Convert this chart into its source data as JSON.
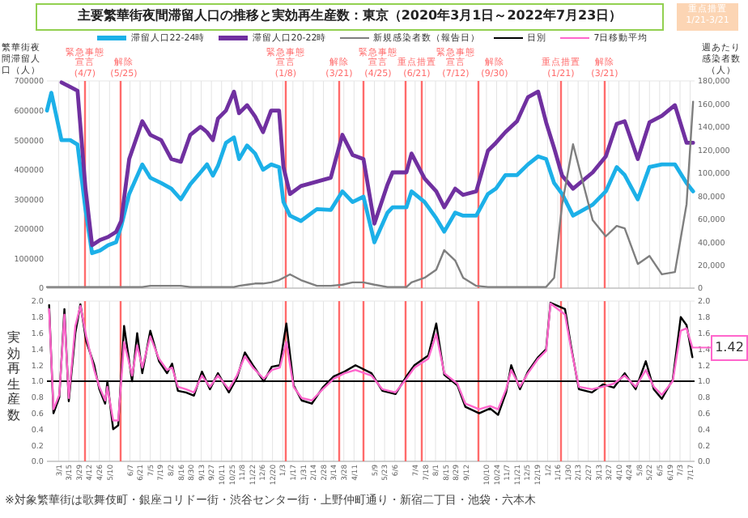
{
  "chart_data": [
    {
      "type": "line",
      "title": "主要繁華街夜間滞留人口の推移と実効再生産数：東京（2020年3月1日～2022年7月23日）",
      "ylabel": "繁華街夜間滞留人口（人）",
      "y2label": "週あたり感染者数（人）",
      "annotations": [
        "重点措置 1/21-3/21"
      ],
      "x": [
        "2020-02-14",
        "2020-02-20",
        "2020-03-05",
        "2020-03-17",
        "2020-03-27",
        "2020-04-07",
        "2020-04-16",
        "2020-04-27",
        "2020-05-08",
        "2020-05-19",
        "2020-05-26",
        "2020-06-06",
        "2020-06-24",
        "2020-07-05",
        "2020-07-20",
        "2020-08-03",
        "2020-08-16",
        "2020-08-29",
        "2020-09-12",
        "2020-09-21",
        "2020-09-29",
        "2020-10-06",
        "2020-10-17",
        "2020-10-28",
        "2020-11-04",
        "2020-11-15",
        "2020-11-26",
        "2020-12-07",
        "2020-12-18",
        "2020-12-29",
        "2021-01-04",
        "2021-01-13",
        "2021-01-28",
        "2021-02-19",
        "2021-03-10",
        "2021-03-26",
        "2021-04-09",
        "2021-04-24",
        "2021-05-09",
        "2021-05-27",
        "2021-06-03",
        "2021-06-22",
        "2021-06-29",
        "2021-07-17",
        "2021-08-02",
        "2021-08-13",
        "2021-08-28",
        "2021-09-08",
        "2021-09-26",
        "2021-10-12",
        "2021-10-23",
        "2021-11-05",
        "2021-11-21",
        "2021-12-06",
        "2021-12-20",
        "2021-12-31",
        "2022-01-11",
        "2022-01-22",
        "2022-02-06",
        "2022-03-05",
        "2022-03-23",
        "2022-04-07",
        "2022-04-18",
        "2022-05-06",
        "2022-05-22",
        "2022-06-08",
        "2022-06-26",
        "2022-07-12",
        "2022-07-21"
      ],
      "series": [
        {
          "name": "滞留人口22-24時",
          "color": "#1cb0e8",
          "values": [
            600000,
            660000,
            500000,
            500000,
            485000,
            264000,
            118000,
            127000,
            145000,
            155000,
            209000,
            318000,
            418000,
            373000,
            355000,
            336000,
            300000,
            351000,
            391000,
            418000,
            380000,
            413000,
            491000,
            509000,
            436000,
            482000,
            455000,
            400000,
            418000,
            409000,
            291000,
            245000,
            227000,
            267000,
            264000,
            327000,
            291000,
            309000,
            155000,
            255000,
            273000,
            273000,
            327000,
            291000,
            236000,
            191000,
            255000,
            245000,
            245000,
            318000,
            336000,
            382000,
            382000,
            418000,
            445000,
            436000,
            355000,
            318000,
            245000,
            282000,
            327000,
            409000,
            382000,
            300000,
            409000,
            418000,
            418000,
            355000,
            327000
          ]
        },
        {
          "name": "滞留人口20-22時",
          "color": "#7030a0",
          "values": [
            null,
            null,
            695000,
            680000,
            667000,
            336000,
            145000,
            163000,
            173000,
            190000,
            227000,
            436000,
            564000,
            518000,
            500000,
            436000,
            427000,
            518000,
            545000,
            527000,
            500000,
            573000,
            600000,
            664000,
            591000,
            618000,
            580000,
            527000,
            600000,
            600000,
            409000,
            318000,
            345000,
            360000,
            373000,
            518000,
            450000,
            436000,
            218000,
            350000,
            391000,
            391000,
            455000,
            370000,
            327000,
            273000,
            336000,
            315000,
            327000,
            464000,
            491000,
            527000,
            564000,
            645000,
            664000,
            560000,
            473000,
            380000,
            336000,
            391000,
            445000,
            555000,
            564000,
            436000,
            560000,
            582000,
            618000,
            491000,
            491000
          ]
        },
        {
          "name": "新規感染者数（報告日）",
          "color": "#7f7f7f",
          "axis": "y2",
          "values": [
            1000,
            1000,
            1000,
            1000,
            1000,
            1000,
            1000,
            1000,
            1000,
            1000,
            1000,
            1000,
            1000,
            2000,
            2000,
            2000,
            2000,
            1000,
            1000,
            1000,
            1000,
            1000,
            1000,
            1000,
            2000,
            3000,
            4000,
            4000,
            5000,
            7000,
            9000,
            12000,
            7000,
            2000,
            2000,
            3000,
            5000,
            5000,
            3000,
            1000,
            1000,
            1000,
            5000,
            9000,
            16000,
            33000,
            24000,
            9000,
            2000,
            1000,
            1000,
            1000,
            1000,
            1000,
            1000,
            1000,
            9000,
            73000,
            125000,
            59000,
            45000,
            54000,
            52000,
            21000,
            28000,
            12000,
            14000,
            73000,
            162000
          ]
        }
      ],
      "xlim": [
        "2020-02-14",
        "2022-07-23"
      ],
      "xticks": [
        {
          "value": "2020-03-01",
          "label": null
        },
        {
          "value": "2020-03-15",
          "label": null
        },
        {
          "value": "2020-03-29",
          "label": null
        },
        {
          "value": "2020-04-12",
          "label": null
        },
        {
          "value": "2020-04-26",
          "label": null
        },
        {
          "value": "2020-05-10",
          "label": null
        },
        {
          "value": "2020-06-07",
          "label": null
        },
        {
          "value": "2020-06-21",
          "label": null
        },
        {
          "value": "2020-07-05",
          "label": null
        },
        {
          "value": "2020-07-19",
          "label": null
        },
        {
          "value": "2020-08-02",
          "label": null
        },
        {
          "value": "2020-08-16",
          "label": null
        },
        {
          "value": "2020-08-30",
          "label": null
        },
        {
          "value": "2020-09-13",
          "label": null
        },
        {
          "value": "2020-09-27",
          "label": null
        },
        {
          "value": "2020-10-11",
          "label": null
        },
        {
          "value": "2020-10-25",
          "label": null
        },
        {
          "value": "2020-11-08",
          "label": null
        },
        {
          "value": "2020-11-22",
          "label": null
        },
        {
          "value": "2020-12-06",
          "label": null
        },
        {
          "value": "2020-12-20",
          "label": null
        },
        {
          "value": "2021-01-03",
          "label": null
        },
        {
          "value": "2021-01-17",
          "label": null
        },
        {
          "value": "2021-01-31",
          "label": null
        },
        {
          "value": "2021-02-14",
          "label": null
        },
        {
          "value": "2021-02-28",
          "label": null
        },
        {
          "value": "2021-03-14",
          "label": null
        },
        {
          "value": "2021-03-28",
          "label": null
        },
        {
          "value": "2021-04-11",
          "label": null
        },
        {
          "value": "2021-05-09",
          "label": null
        },
        {
          "value": "2021-05-23",
          "label": null
        },
        {
          "value": "2021-06-06",
          "label": null
        },
        {
          "value": "2021-07-04",
          "label": null
        },
        {
          "value": "2021-07-18",
          "label": null
        },
        {
          "value": "2021-08-01",
          "label": null
        },
        {
          "value": "2021-08-15",
          "label": null
        },
        {
          "value": "2021-08-29",
          "label": null
        },
        {
          "value": "2021-09-12",
          "label": null
        },
        {
          "value": "2021-10-10",
          "label": null
        },
        {
          "value": "2021-10-24",
          "label": null
        },
        {
          "value": "2021-11-07",
          "label": null
        },
        {
          "value": "2021-11-21",
          "label": null
        },
        {
          "value": "2021-12-05",
          "label": null
        },
        {
          "value": "2021-12-19",
          "label": null
        },
        {
          "value": "2022-01-02",
          "label": null
        },
        {
          "value": "2022-01-16",
          "label": null
        },
        {
          "value": "2022-01-30",
          "label": null
        },
        {
          "value": "2022-02-13",
          "label": null
        },
        {
          "value": "2022-02-27",
          "label": null
        },
        {
          "value": "2022-03-13",
          "label": null
        },
        {
          "value": "2022-03-27",
          "label": null
        },
        {
          "value": "2022-04-10",
          "label": null
        },
        {
          "value": "2022-04-24",
          "label": null
        },
        {
          "value": "2022-05-08",
          "label": null
        },
        {
          "value": "2022-05-22",
          "label": null
        },
        {
          "value": "2022-06-05",
          "label": null
        },
        {
          "value": "2022-06-19",
          "label": null
        },
        {
          "value": "2022-07-03",
          "label": null
        },
        {
          "value": "2022-07-17",
          "label": null
        }
      ],
      "ylim": [
        0,
        700000
      ],
      "yticks": [
        0,
        100000,
        200000,
        300000,
        400000,
        500000,
        600000,
        700000
      ],
      "y2lim": [
        0,
        180000
      ],
      "y2ticks": [
        {
          "value": 0,
          "label": "0"
        },
        {
          "value": 20000,
          "label": "20,000"
        },
        {
          "value": 40000,
          "label": "40,000"
        },
        {
          "value": 60000,
          "label": "60,000"
        },
        {
          "value": 80000,
          "label": "80,000"
        },
        {
          "value": 100000,
          "label": "100,000"
        },
        {
          "value": 120000,
          "label": "120,000"
        },
        {
          "value": 140000,
          "label": "140,000"
        },
        {
          "value": 160000,
          "label": "160,000"
        },
        {
          "value": 180000,
          "label": "180,000"
        }
      ],
      "ref_lines": [
        {
          "axis": "x",
          "value": "2020-04-07",
          "label": "緊急事態宣言 (4/7)",
          "color": "#ff6b6b"
        },
        {
          "axis": "x",
          "value": "2020-05-25",
          "label": "解除 (5/25)",
          "color": "#ff6b6b"
        },
        {
          "axis": "x",
          "value": "2021-01-08",
          "label": "緊急事態宣言 (1/8)",
          "color": "#ff6b6b"
        },
        {
          "axis": "x",
          "value": "2021-03-21",
          "label": "解除 (3/21)",
          "color": "#ff6b6b"
        },
        {
          "axis": "x",
          "value": "2021-04-25",
          "label": "緊急事態宣言 (4/25)",
          "color": "#ff6b6b"
        },
        {
          "axis": "x",
          "value": "2021-06-21",
          "label": "重点措置 (6/21)",
          "color": "#ff6b6b"
        },
        {
          "axis": "x",
          "value": "2021-07-12",
          "label": "緊急事態宣言 (7/12)",
          "color": "#ff6b6b"
        },
        {
          "axis": "x",
          "value": "2021-09-30",
          "label": "解除 (9/30)",
          "color": "#ff6b6b"
        },
        {
          "axis": "x",
          "value": "2022-01-21",
          "label": "重点措置 (1/21)",
          "color": "#ff6b6b"
        },
        {
          "axis": "x",
          "value": "2022-03-21",
          "label": "解除 (3/21)",
          "color": "#ff6b6b"
        }
      ],
      "grid": "x",
      "legend": "top",
      "tick_labels": "y"
    },
    {
      "type": "line",
      "ylabel": "実効再生産数",
      "annotations": [
        {
          "text": "1.42",
          "x": "2022-07-20",
          "y": 1.42
        },
        "※対象繁華街は歌舞伎町・銀座コリドー街・渋谷センター街・上野仲町通り・新宿二丁目・池袋・六本木"
      ],
      "x": [
        "2020-02-17",
        "2020-02-23",
        "2020-03-02",
        "2020-03-09",
        "2020-03-15",
        "2020-03-24",
        "2020-03-31",
        "2020-04-08",
        "2020-04-19",
        "2020-04-26",
        "2020-05-04",
        "2020-05-07",
        "2020-05-15",
        "2020-05-22",
        "2020-05-30",
        "2020-06-10",
        "2020-06-17",
        "2020-06-24",
        "2020-07-05",
        "2020-07-17",
        "2020-07-28",
        "2020-08-04",
        "2020-08-12",
        "2020-08-23",
        "2020-09-03",
        "2020-09-14",
        "2020-09-25",
        "2020-10-06",
        "2020-10-21",
        "2020-11-01",
        "2020-11-12",
        "2020-11-23",
        "2020-12-08",
        "2020-12-19",
        "2020-12-30",
        "2021-01-08",
        "2021-01-18",
        "2021-01-29",
        "2021-02-12",
        "2021-02-27",
        "2021-03-14",
        "2021-03-29",
        "2021-04-13",
        "2021-05-05",
        "2021-05-20",
        "2021-06-07",
        "2021-06-22",
        "2021-07-03",
        "2021-07-22",
        "2021-08-02",
        "2021-08-13",
        "2021-08-31",
        "2021-09-11",
        "2021-09-30",
        "2021-10-15",
        "2021-10-26",
        "2021-11-06",
        "2021-11-13",
        "2021-11-25",
        "2021-12-06",
        "2021-12-20",
        "2021-12-31",
        "2022-01-06",
        "2022-01-26",
        "2022-02-03",
        "2022-02-14",
        "2022-03-04",
        "2022-03-19",
        "2022-04-03",
        "2022-04-18",
        "2022-05-03",
        "2022-05-17",
        "2022-05-28",
        "2022-06-08",
        "2022-06-23",
        "2022-07-04",
        "2022-07-12",
        "2022-07-20"
      ],
      "series": [
        {
          "name": "日別",
          "color": "#000000",
          "values": [
            1.95,
            0.6,
            0.8,
            1.9,
            0.75,
            1.6,
            1.96,
            1.5,
            1.2,
            0.9,
            0.72,
            1.0,
            0.4,
            0.45,
            1.69,
            1.0,
            1.6,
            1.1,
            1.63,
            1.25,
            1.1,
            1.22,
            0.88,
            0.86,
            0.82,
            1.12,
            0.9,
            1.1,
            0.86,
            1.04,
            1.36,
            1.2,
            1.0,
            1.18,
            1.2,
            1.72,
            0.95,
            0.76,
            0.72,
            0.92,
            1.06,
            1.12,
            1.2,
            1.1,
            0.88,
            0.84,
            1.06,
            1.2,
            1.32,
            1.72,
            1.08,
            0.95,
            0.68,
            0.6,
            0.66,
            0.58,
            0.86,
            1.2,
            0.9,
            1.12,
            1.3,
            1.4,
            1.98,
            1.9,
            1.45,
            0.9,
            0.86,
            0.96,
            0.92,
            1.1,
            0.9,
            1.25,
            0.9,
            0.78,
            1.02,
            1.8,
            1.7,
            1.3
          ]
        },
        {
          "name": "7日移動平均",
          "color": "#ff66cc",
          "values": [
            1.9,
            0.65,
            0.83,
            1.83,
            0.79,
            1.69,
            1.94,
            1.56,
            1.14,
            0.93,
            0.76,
            0.93,
            0.51,
            0.51,
            1.49,
            1.07,
            1.45,
            1.17,
            1.56,
            1.28,
            1.14,
            1.17,
            0.93,
            0.9,
            0.86,
            1.07,
            0.93,
            1.07,
            0.9,
            1.07,
            1.31,
            1.17,
            1.03,
            1.14,
            1.17,
            1.49,
            0.93,
            0.79,
            0.76,
            0.9,
            1.03,
            1.1,
            1.14,
            1.07,
            0.9,
            0.86,
            1.03,
            1.17,
            1.28,
            1.59,
            1.1,
            0.97,
            0.72,
            0.65,
            0.69,
            0.65,
            0.9,
            1.14,
            0.93,
            1.1,
            1.28,
            1.38,
            1.97,
            1.83,
            1.42,
            0.93,
            0.9,
            0.93,
            0.97,
            1.07,
            0.93,
            1.14,
            0.93,
            0.83,
            1.0,
            1.63,
            1.66,
            1.42
          ]
        }
      ],
      "xlim": [
        "2020-02-14",
        "2022-07-23"
      ],
      "xticks": [
        {
          "value": "2020-03-01",
          "label": "3/1"
        },
        {
          "value": "2020-03-15",
          "label": "3/15"
        },
        {
          "value": "2020-03-29",
          "label": "3/29"
        },
        {
          "value": "2020-04-12",
          "label": "4/12"
        },
        {
          "value": "2020-04-26",
          "label": "4/26"
        },
        {
          "value": "2020-05-10",
          "label": "5/10"
        },
        {
          "value": "2020-06-07",
          "label": "6/7"
        },
        {
          "value": "2020-06-21",
          "label": "6/21"
        },
        {
          "value": "2020-07-05",
          "label": "7/5"
        },
        {
          "value": "2020-07-19",
          "label": "7/19"
        },
        {
          "value": "2020-08-02",
          "label": "8/2"
        },
        {
          "value": "2020-08-16",
          "label": "8/16"
        },
        {
          "value": "2020-08-30",
          "label": "8/30"
        },
        {
          "value": "2020-09-13",
          "label": "9/13"
        },
        {
          "value": "2020-09-27",
          "label": "9/27"
        },
        {
          "value": "2020-10-11",
          "label": "10/11"
        },
        {
          "value": "2020-10-25",
          "label": "10/25"
        },
        {
          "value": "2020-11-08",
          "label": "11/8"
        },
        {
          "value": "2020-11-22",
          "label": "11/22"
        },
        {
          "value": "2020-12-06",
          "label": "12/6"
        },
        {
          "value": "2020-12-20",
          "label": "12/20"
        },
        {
          "value": "2021-01-03",
          "label": "1/3"
        },
        {
          "value": "2021-01-17",
          "label": "1/17"
        },
        {
          "value": "2021-01-31",
          "label": "1/31"
        },
        {
          "value": "2021-02-14",
          "label": "2/14"
        },
        {
          "value": "2021-02-28",
          "label": "2/28"
        },
        {
          "value": "2021-03-14",
          "label": "3/14"
        },
        {
          "value": "2021-03-28",
          "label": "3/28"
        },
        {
          "value": "2021-04-11",
          "label": "4/11"
        },
        {
          "value": "2021-05-09",
          "label": "5/9"
        },
        {
          "value": "2021-05-23",
          "label": "5/23"
        },
        {
          "value": "2021-06-06",
          "label": "6/6"
        },
        {
          "value": "2021-07-04",
          "label": "7/4"
        },
        {
          "value": "2021-07-18",
          "label": "7/18"
        },
        {
          "value": "2021-08-01",
          "label": "8/1"
        },
        {
          "value": "2021-08-15",
          "label": "8/15"
        },
        {
          "value": "2021-08-29",
          "label": "8/29"
        },
        {
          "value": "2021-09-12",
          "label": "9/12"
        },
        {
          "value": "2021-10-10",
          "label": "10/10"
        },
        {
          "value": "2021-10-24",
          "label": "10/24"
        },
        {
          "value": "2021-11-07",
          "label": "11/7"
        },
        {
          "value": "2021-11-21",
          "label": "11/21"
        },
        {
          "value": "2021-12-05",
          "label": "12/5"
        },
        {
          "value": "2021-12-19",
          "label": "12/19"
        },
        {
          "value": "2022-01-02",
          "label": "1/2"
        },
        {
          "value": "2022-01-16",
          "label": "1/16"
        },
        {
          "value": "2022-01-30",
          "label": "1/30"
        },
        {
          "value": "2022-02-13",
          "label": "2/13"
        },
        {
          "value": "2022-02-27",
          "label": "2/27"
        },
        {
          "value": "2022-03-13",
          "label": "3/13"
        },
        {
          "value": "2022-03-27",
          "label": "3/27"
        },
        {
          "value": "2022-04-10",
          "label": "4/10"
        },
        {
          "value": "2022-04-24",
          "label": "4/24"
        },
        {
          "value": "2022-05-08",
          "label": "5/8"
        },
        {
          "value": "2022-05-22",
          "label": "5/22"
        },
        {
          "value": "2022-06-05",
          "label": "6/5"
        },
        {
          "value": "2022-06-19",
          "label": "6/19"
        },
        {
          "value": "2022-07-03",
          "label": "7/3"
        },
        {
          "value": "2022-07-17",
          "label": "7/17"
        }
      ],
      "ylim": [
        0,
        2
      ],
      "yticks": [
        {
          "value": 0,
          "label": "0.0"
        },
        {
          "value": 0.2,
          "label": "0.2"
        },
        {
          "value": 0.4,
          "label": "0.4"
        },
        {
          "value": 0.6,
          "label": "0.6"
        },
        {
          "value": 0.8,
          "label": "0.8"
        },
        {
          "value": 1,
          "label": "1.0"
        },
        {
          "value": 1.2,
          "label": "1.2"
        },
        {
          "value": 1.4,
          "label": "1.4"
        },
        {
          "value": 1.6,
          "label": "1.6"
        },
        {
          "value": 1.8,
          "label": "1.8"
        },
        {
          "value": 2,
          "label": "2.0"
        }
      ],
      "y2lim": [
        0,
        2
      ],
      "y2ticks": [
        {
          "value": 0,
          "label": "0.0"
        },
        {
          "value": 0.2,
          "label": "0.2"
        },
        {
          "value": 0.4,
          "label": "0.4"
        },
        {
          "value": 0.6,
          "label": "0.6"
        },
        {
          "value": 0.8,
          "label": "0.8"
        },
        {
          "value": 1,
          "label": "1.0"
        },
        {
          "value": 1.2,
          "label": "1.2"
        },
        {
          "value": 1.4,
          "label": "1.4"
        },
        {
          "value": 1.6,
          "label": "1.6"
        },
        {
          "value": 1.8,
          "label": "1.8"
        },
        {
          "value": 2,
          "label": "2.0"
        }
      ],
      "ref_lines": [
        {
          "axis": "x",
          "value": "2020-04-07",
          "color": "#ff6b6b"
        },
        {
          "axis": "x",
          "value": "2020-05-25",
          "color": "#ff6b6b"
        },
        {
          "axis": "x",
          "value": "2021-01-08",
          "color": "#ff6b6b"
        },
        {
          "axis": "x",
          "value": "2021-03-21",
          "color": "#ff6b6b"
        },
        {
          "axis": "x",
          "value": "2021-04-25",
          "color": "#ff6b6b"
        },
        {
          "axis": "x",
          "value": "2021-06-21",
          "color": "#ff6b6b"
        },
        {
          "axis": "x",
          "value": "2021-07-12",
          "color": "#ff6b6b"
        },
        {
          "axis": "x",
          "value": "2021-09-30",
          "color": "#ff6b6b"
        },
        {
          "axis": "x",
          "value": "2022-01-21",
          "color": "#ff6b6b"
        },
        {
          "axis": "x",
          "value": "2022-03-21",
          "color": "#ff6b6b"
        },
        {
          "axis": "y",
          "value": 1,
          "color": "#000000"
        }
      ],
      "grid": "x",
      "legend": "top"
    }
  ]
}
